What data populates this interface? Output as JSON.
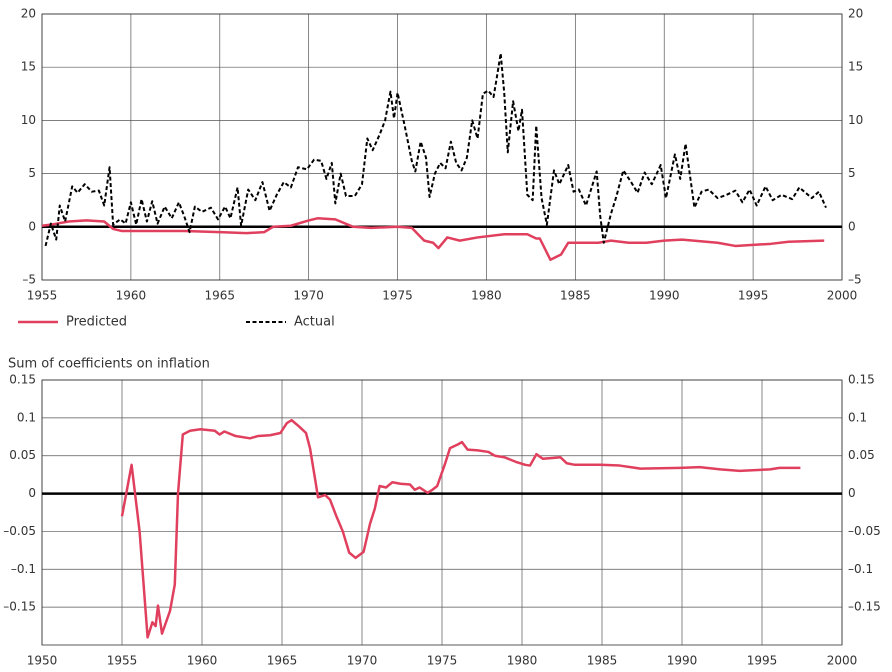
{
  "chart_data": [
    {
      "type": "line",
      "xlim": [
        1955,
        2000
      ],
      "xticks": [
        1955,
        1960,
        1965,
        1970,
        1975,
        1980,
        1985,
        1990,
        1995,
        2000
      ],
      "ylim": [
        -5,
        20
      ],
      "yticks": [
        {
          "value": -5,
          "label": "–5"
        },
        0,
        5,
        10,
        15,
        20
      ],
      "grid": true,
      "right_ticks": true,
      "legend": "below",
      "series": [
        {
          "name": "Predicted",
          "color": "#e0405e",
          "dash": false,
          "x": [
            1955.0,
            1955.5,
            1956.5,
            1957.5,
            1958.5,
            1959.0,
            1959.5,
            1961.0,
            1963.0,
            1965.0,
            1966.5,
            1967.5,
            1968.0,
            1969.0,
            1970.0,
            1970.5,
            1971.5,
            1972.5,
            1973.5,
            1975.0,
            1975.8,
            1976.5,
            1977.0,
            1977.3,
            1977.8,
            1978.5,
            1979.5,
            1981.0,
            1982.3,
            1982.8,
            1983.0,
            1983.6,
            1984.2,
            1984.6,
            1985.2,
            1986.3,
            1987.0,
            1988.0,
            1989.0,
            1990.0,
            1991.0,
            1993.0,
            1994.0,
            1996.0,
            1997.0,
            1999.0
          ],
          "values": [
            0.1,
            0.2,
            0.5,
            0.6,
            0.5,
            -0.2,
            -0.4,
            -0.4,
            -0.4,
            -0.5,
            -0.6,
            -0.5,
            0,
            0.1,
            0.6,
            0.8,
            0.7,
            0,
            -0.1,
            0,
            -0.1,
            -1.3,
            -1.5,
            -2.0,
            -1.0,
            -1.3,
            -1.0,
            -0.7,
            -0.7,
            -1.1,
            -1.1,
            -3.1,
            -2.6,
            -1.5,
            -1.5,
            -1.5,
            -1.3,
            -1.5,
            -1.5,
            -1.3,
            -1.2,
            -1.5,
            -1.8,
            -1.6,
            -1.4,
            -1.3
          ]
        },
        {
          "name": "Actual",
          "color": "#000000",
          "dash": true,
          "x": [
            1955.2,
            1955.5,
            1955.8,
            1956.0,
            1956.3,
            1956.7,
            1957.0,
            1957.4,
            1957.8,
            1958.2,
            1958.5,
            1958.8,
            1959.0,
            1959.4,
            1959.7,
            1960.0,
            1960.3,
            1960.6,
            1960.9,
            1961.2,
            1961.5,
            1961.9,
            1962.3,
            1962.7,
            1963.0,
            1963.3,
            1963.6,
            1964.0,
            1964.5,
            1964.9,
            1965.3,
            1965.6,
            1966.0,
            1966.2,
            1966.6,
            1967.0,
            1967.4,
            1967.8,
            1968.2,
            1968.6,
            1969.0,
            1969.4,
            1969.9,
            1970.3,
            1970.7,
            1971.0,
            1971.3,
            1971.5,
            1971.8,
            1972.1,
            1972.6,
            1973.0,
            1973.3,
            1973.6,
            1974.0,
            1974.3,
            1974.6,
            1974.8,
            1975.0,
            1975.4,
            1975.8,
            1976.0,
            1976.3,
            1976.6,
            1976.8,
            1977.1,
            1977.4,
            1977.7,
            1978.0,
            1978.3,
            1978.6,
            1978.9,
            1979.2,
            1979.5,
            1979.8,
            1980.1,
            1980.4,
            1980.6,
            1980.8,
            1981.0,
            1981.2,
            1981.5,
            1981.8,
            1982.0,
            1982.3,
            1982.6,
            1982.8,
            1983.1,
            1983.4,
            1983.8,
            1984.1,
            1984.6,
            1984.9,
            1985.2,
            1985.6,
            1986.2,
            1986.4,
            1986.6,
            1987.0,
            1987.3,
            1987.7,
            1988.1,
            1988.5,
            1988.9,
            1989.3,
            1989.8,
            1990.1,
            1990.6,
            1990.9,
            1991.2,
            1991.7,
            1992.1,
            1992.5,
            1993.0,
            1993.5,
            1994.0,
            1994.4,
            1994.8,
            1995.2,
            1995.7,
            1996.1,
            1996.6,
            1997.2,
            1997.6,
            1998.3,
            1998.7,
            1999.1
          ],
          "values": [
            -1.8,
            0.3,
            -1.2,
            2.0,
            0.5,
            3.8,
            3.2,
            4.0,
            3.3,
            3.4,
            2.0,
            5.6,
            0.2,
            0.7,
            0.3,
            2.3,
            0.2,
            2.6,
            0.5,
            2.4,
            0.3,
            1.9,
            0.8,
            2.3,
            1.0,
            -0.5,
            1.9,
            1.4,
            1.8,
            0.7,
            1.9,
            0.8,
            3.7,
            0.1,
            3.5,
            2.5,
            4.2,
            1.5,
            3.0,
            4.2,
            3.7,
            5.6,
            5.4,
            6.3,
            6.2,
            4.5,
            6.0,
            2.2,
            5.0,
            2.9,
            2.9,
            4.0,
            8.3,
            7.2,
            8.7,
            10.0,
            12.7,
            10.2,
            12.6,
            9.5,
            6.2,
            5.2,
            8.0,
            6.5,
            2.8,
            5.0,
            6.0,
            5.5,
            8.0,
            6.0,
            5.3,
            6.5,
            10.0,
            8.3,
            12.5,
            12.8,
            12.2,
            14.2,
            16.3,
            12.6,
            7.0,
            11.8,
            9.0,
            11.0,
            3.0,
            2.5,
            9.5,
            2.7,
            0.2,
            5.3,
            4.0,
            5.8,
            3.3,
            3.5,
            2.0,
            5.2,
            1.0,
            -1.5,
            1.2,
            2.8,
            5.3,
            4.3,
            3.2,
            5.1,
            4.0,
            5.8,
            2.7,
            6.8,
            4.5,
            7.8,
            1.8,
            3.3,
            3.5,
            2.7,
            3.0,
            3.4,
            2.3,
            3.5,
            2.0,
            3.8,
            2.5,
            3.0,
            2.6,
            3.7,
            2.7,
            3.3,
            1.8
          ]
        }
      ]
    },
    {
      "type": "line",
      "subtitle": "Sum of coefficients on inflation",
      "xlim": [
        1950,
        2000
      ],
      "xticks": [
        1950,
        1955,
        1960,
        1965,
        1970,
        1975,
        1980,
        1985,
        1990,
        1995,
        2000
      ],
      "ylim": [
        -0.2,
        0.15
      ],
      "yticks": [
        {
          "value": -0.15,
          "label": "–0.15"
        },
        {
          "value": -0.1,
          "label": "–0.1"
        },
        {
          "value": -0.05,
          "label": "–0.05"
        },
        0,
        0.05,
        0.1,
        0.15
      ],
      "grid": true,
      "right_ticks": true,
      "series": [
        {
          "color": "#e0405e",
          "dash": false,
          "x": [
            1955.0,
            1955.6,
            1956.1,
            1956.6,
            1956.9,
            1957.1,
            1957.25,
            1957.5,
            1958.0,
            1958.3,
            1958.5,
            1958.8,
            1959.25,
            1959.9,
            1960.8,
            1961.1,
            1961.4,
            1962.1,
            1963.0,
            1963.5,
            1964.25,
            1964.9,
            1965.3,
            1965.6,
            1966.1,
            1966.5,
            1966.75,
            1967.1,
            1967.25,
            1967.7,
            1968.0,
            1968.4,
            1968.8,
            1969.2,
            1969.6,
            1970.1,
            1970.5,
            1970.8,
            1971.1,
            1971.5,
            1971.9,
            1972.4,
            1973.0,
            1973.3,
            1973.6,
            1974.1,
            1974.4,
            1974.7,
            1975.2,
            1975.5,
            1976.0,
            1976.25,
            1976.6,
            1977.25,
            1977.9,
            1978.3,
            1978.9,
            1979.6,
            1980.2,
            1980.5,
            1980.9,
            1981.3,
            1981.9,
            1982.4,
            1982.8,
            1983.3,
            1984.9,
            1986.1,
            1987.4,
            1989.9,
            1991.1,
            1992.4,
            1993.6,
            1995.5,
            1996.1,
            1997.4
          ],
          "values": [
            -0.03,
            0.038,
            -0.05,
            -0.19,
            -0.17,
            -0.175,
            -0.148,
            -0.185,
            -0.155,
            -0.12,
            0,
            0.078,
            0.083,
            0.085,
            0.083,
            0.078,
            0.082,
            0.076,
            0.073,
            0.076,
            0.077,
            0.08,
            0.093,
            0.097,
            0.088,
            0.08,
            0.06,
            0.015,
            -0.005,
            -0.002,
            -0.008,
            -0.03,
            -0.05,
            -0.078,
            -0.085,
            -0.077,
            -0.04,
            -0.02,
            0.01,
            0.008,
            0.015,
            0.013,
            0.012,
            0.005,
            0.008,
            0.001,
            0.005,
            0.01,
            0.04,
            0.06,
            0.065,
            0.068,
            0.058,
            0.057,
            0.055,
            0.05,
            0.048,
            0.042,
            0.038,
            0.037,
            0.052,
            0.046,
            0.047,
            0.048,
            0.04,
            0.038,
            0.038,
            0.037,
            0.033,
            0.034,
            0.035,
            0.032,
            0.03,
            0.032,
            0.034,
            0.034
          ]
        }
      ]
    }
  ]
}
